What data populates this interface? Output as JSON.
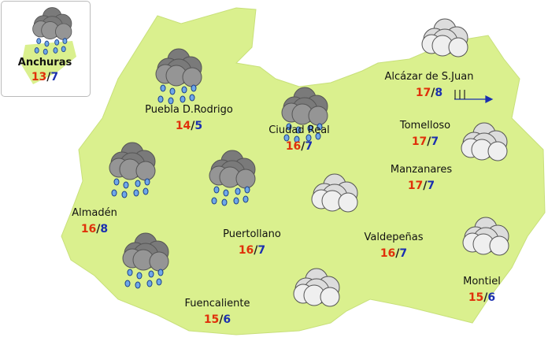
{
  "colors": {
    "land": "#daf08e",
    "border": "#ffffff",
    "max_temp": "#e0300a",
    "min_temp": "#1a2fb0",
    "rain_cloud": "#7a7a7a",
    "overcast_cloud": "#d6d6d6"
  },
  "inset": {
    "name": "Anchuras",
    "max": "13",
    "min": "7",
    "icon": "rain-cloud"
  },
  "stations": [
    {
      "name": "Puebla D.Rodrigo",
      "max": "14",
      "min": "5",
      "icon": "rain-cloud"
    },
    {
      "name": "Ciudad Real",
      "max": "16",
      "min": "7",
      "icon": "rain-cloud"
    },
    {
      "name": "Alcázar de S.Juan",
      "max": "17",
      "min": "8",
      "icon": "overcast-cloud"
    },
    {
      "name": "Tomelloso",
      "max": "17",
      "min": "7",
      "icon": "overcast-cloud"
    },
    {
      "name": "Manzanares",
      "max": "17",
      "min": "7",
      "icon": "overcast-cloud"
    },
    {
      "name": "Almadén",
      "max": "16",
      "min": "8",
      "icon": "rain-cloud"
    },
    {
      "name": "Puertollano",
      "max": "16",
      "min": "7",
      "icon": "rain-cloud"
    },
    {
      "name": "Valdepeñas",
      "max": "16",
      "min": "7",
      "icon": "overcast-cloud"
    },
    {
      "name": "Fuencaliente",
      "max": "15",
      "min": "6",
      "icon": "rain-cloud"
    },
    {
      "name": "Montiel",
      "max": "15",
      "min": "6",
      "icon": "overcast-cloud"
    }
  ],
  "separator": "/",
  "wind": {
    "icon": "wind-barb-arrow",
    "direction": "east"
  }
}
